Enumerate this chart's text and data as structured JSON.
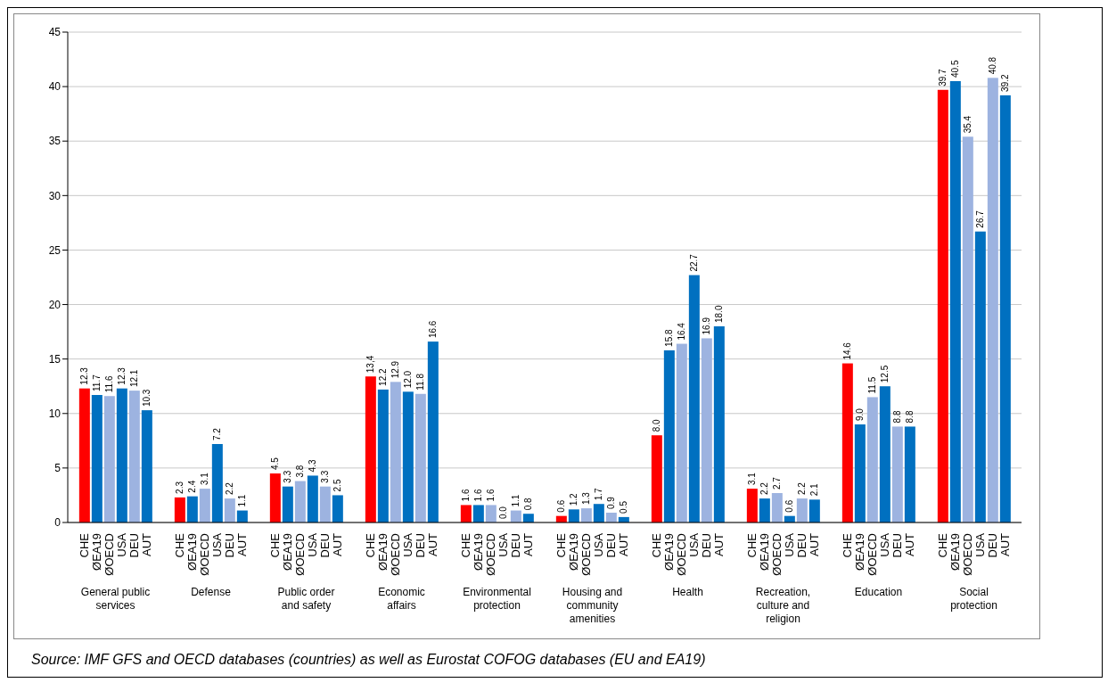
{
  "chart_data": {
    "type": "bar",
    "categories": [
      "General public services",
      "Defense",
      "Public order and safety",
      "Economic affairs",
      "Environmental protection",
      "Housing and community amenities",
      "Health",
      "Recreation, culture and religion",
      "Education",
      "Social protection"
    ],
    "series": [
      {
        "name": "CHE",
        "color": "#ff0000",
        "values": [
          12.3,
          2.3,
          4.5,
          13.4,
          1.6,
          0.6,
          8.0,
          3.1,
          14.6,
          39.7
        ],
        "value_labels": [
          "12.3",
          "2.3",
          "4.5",
          "13,4",
          "1.6",
          "0.6",
          "8.0",
          "3.1",
          "14.6",
          "39.7"
        ]
      },
      {
        "name": "ØEA19",
        "color": "#0070c0",
        "values": [
          11.7,
          2.4,
          3.3,
          12.2,
          1.6,
          1.2,
          15.8,
          2.2,
          9.0,
          40.5
        ],
        "value_labels": [
          "11.7",
          "2.4",
          "3.3",
          "12.2",
          "1.6",
          "1.2",
          "15.8",
          "2.2",
          "9.0",
          "40.5"
        ]
      },
      {
        "name": "ØOECD",
        "color": "#9db3e0",
        "values": [
          11.6,
          3.1,
          3.8,
          12.9,
          1.6,
          1.3,
          16.4,
          2.7,
          11.5,
          35.4
        ],
        "value_labels": [
          "11.6",
          "3.1",
          "3.8",
          "12.9",
          "1.6",
          "1.3",
          "16.4",
          "2.7",
          "11.5",
          "35.4"
        ]
      },
      {
        "name": "USA",
        "color": "#0070c0",
        "values": [
          12.3,
          7.2,
          4.3,
          12.0,
          0.0,
          1.7,
          22.7,
          0.6,
          12.5,
          26.7
        ],
        "value_labels": [
          "12.3",
          "7.2",
          "4.3",
          "12.0",
          "0.0",
          "1.7",
          "22.7",
          "0.6",
          "12.5",
          "26.7"
        ]
      },
      {
        "name": "DEU",
        "color": "#9db3e0",
        "values": [
          12.1,
          2.2,
          3.3,
          11.8,
          1.1,
          0.9,
          16.9,
          2.2,
          8.8,
          40.8
        ],
        "value_labels": [
          "12.1",
          "2.2",
          "3.3",
          "11.8",
          "1.1",
          "0.9",
          "16.9",
          "2.2",
          "8.8",
          "40.8"
        ]
      },
      {
        "name": "AUT",
        "color": "#0070c0",
        "values": [
          10.3,
          1.1,
          2.5,
          16.6,
          0.8,
          0.5,
          18.0,
          2.1,
          8.8,
          39.2
        ],
        "value_labels": [
          "10.3",
          "1.1",
          "2.5",
          "16.6",
          "0.8",
          "0.5",
          "18.0",
          "2.1",
          "8.8",
          "39.2"
        ]
      }
    ],
    "ylim": [
      0,
      45
    ],
    "yticks": [
      0,
      5,
      10,
      15,
      20,
      25,
      30,
      35,
      40,
      45
    ],
    "grid": "y",
    "annotations": [
      "Source: IMF GFS and OECD databases (countries) as well as Eurostat COFOG databases (EU and EA19)"
    ]
  }
}
